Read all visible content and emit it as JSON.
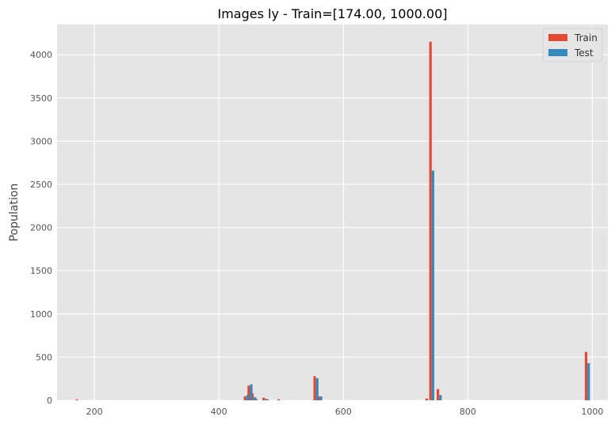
{
  "chart_data": {
    "type": "bar",
    "title": "Images ly - Train=[174.00, 1000.00]",
    "xlabel": "",
    "ylabel": "Population",
    "xlim": [
      140,
      1025
    ],
    "ylim": [
      0,
      4350
    ],
    "x_ticks": [
      200,
      400,
      600,
      800,
      1000
    ],
    "y_ticks": [
      0,
      500,
      1000,
      1500,
      2000,
      2500,
      3000,
      3500,
      4000
    ],
    "grid": true,
    "legend_position": "top-right",
    "series": [
      {
        "name": "Train",
        "color": "#E24A33",
        "points": [
          {
            "x": 174,
            "y": 10
          },
          {
            "x": 444,
            "y": 45
          },
          {
            "x": 450,
            "y": 170
          },
          {
            "x": 456,
            "y": 80
          },
          {
            "x": 462,
            "y": 15
          },
          {
            "x": 474,
            "y": 30
          },
          {
            "x": 480,
            "y": 12
          },
          {
            "x": 498,
            "y": 12
          },
          {
            "x": 556,
            "y": 280
          },
          {
            "x": 562,
            "y": 45
          },
          {
            "x": 736,
            "y": 20
          },
          {
            "x": 742,
            "y": 4150
          },
          {
            "x": 754,
            "y": 130
          },
          {
            "x": 992,
            "y": 560
          }
        ]
      },
      {
        "name": "Test",
        "color": "#348ABD",
        "points": [
          {
            "x": 174,
            "y": 0
          },
          {
            "x": 444,
            "y": 60
          },
          {
            "x": 450,
            "y": 185
          },
          {
            "x": 456,
            "y": 35
          },
          {
            "x": 462,
            "y": 0
          },
          {
            "x": 474,
            "y": 15
          },
          {
            "x": 480,
            "y": 0
          },
          {
            "x": 498,
            "y": 0
          },
          {
            "x": 556,
            "y": 255
          },
          {
            "x": 562,
            "y": 45
          },
          {
            "x": 736,
            "y": 0
          },
          {
            "x": 742,
            "y": 2660
          },
          {
            "x": 754,
            "y": 60
          },
          {
            "x": 992,
            "y": 430
          }
        ]
      }
    ]
  }
}
